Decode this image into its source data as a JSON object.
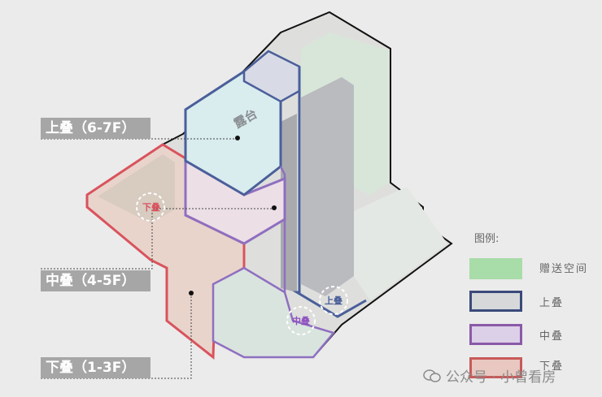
{
  "labels": {
    "upper": "上叠（6-7F）",
    "middle": "中叠（4-5F）",
    "lower": "下叠（1-3F）",
    "terrace": "露台",
    "circle_lower": "下叠",
    "circle_middle": "中叠",
    "circle_upper": "上叠"
  },
  "legend": {
    "title": "图例:",
    "items": [
      {
        "label": "赠送空间",
        "color": "#a8dca8"
      },
      {
        "label": "上叠",
        "color": "#3b4a7a"
      },
      {
        "label": "中叠",
        "color": "#8a5aa8"
      },
      {
        "label": "下叠",
        "color": "#c85a5a"
      }
    ]
  },
  "watermark": "公众号 · 小曾看房",
  "colors": {
    "lower": "#d9535d",
    "middle": "#8f6fc0",
    "upper": "#4a5f9a",
    "outline": "#111111"
  }
}
